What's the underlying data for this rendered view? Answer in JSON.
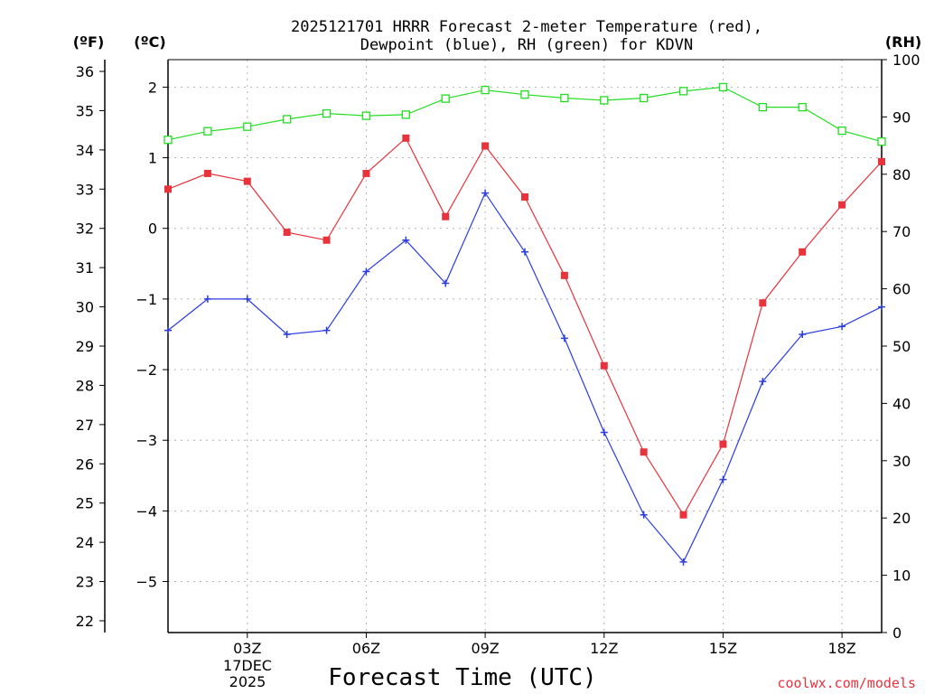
{
  "chart_data": {
    "type": "line",
    "title_line1": "2025121701 HRRR Forecast 2-meter Temperature (red),",
    "title_line2": "Dewpoint (blue), RH (green) for KDVN",
    "unit_left_f": "(ºF)",
    "unit_left_c": "(ºC)",
    "unit_right": "(RH)",
    "xlabel": "Forecast Time (UTC)",
    "credit": "coolwx.com/models",
    "date_day": "17DEC",
    "date_year": "2025",
    "x_hours": [
      1,
      2,
      3,
      4,
      5,
      6,
      7,
      8,
      9,
      10,
      11,
      12,
      13,
      14,
      15,
      16,
      17,
      18,
      19
    ],
    "x_ticks": [
      {
        "hour": 3,
        "label": "03Z"
      },
      {
        "hour": 6,
        "label": "06Z"
      },
      {
        "hour": 9,
        "label": "09Z"
      },
      {
        "hour": 12,
        "label": "12Z"
      },
      {
        "hour": 15,
        "label": "15Z"
      },
      {
        "hour": 18,
        "label": "18Z"
      }
    ],
    "fahrenheit_ticks": [
      "36",
      "35",
      "34",
      "33",
      "32",
      "31",
      "30",
      "29",
      "28",
      "27",
      "26",
      "25",
      "24",
      "23",
      "22"
    ],
    "celsius_ticks": [
      "2",
      "1",
      "0",
      "−1",
      "−2",
      "−3",
      "−4",
      "−5"
    ],
    "rh_ticks": [
      "100",
      "90",
      "80",
      "70",
      "60",
      "50",
      "40",
      "30",
      "20",
      "10",
      "0"
    ],
    "ylim_f": [
      21.7,
      36.3
    ],
    "ylim_rh": [
      0,
      100
    ],
    "series": [
      {
        "name": "Temperature",
        "units": "F",
        "color": "#e8323c",
        "marker": "filled-square",
        "values": [
          33.0,
          33.4,
          33.2,
          31.9,
          31.7,
          33.4,
          34.3,
          32.3,
          34.1,
          32.8,
          30.8,
          28.5,
          26.3,
          24.7,
          26.5,
          30.1,
          31.4,
          32.6,
          33.7
        ]
      },
      {
        "name": "Dewpoint",
        "units": "F",
        "color": "#2c3ce0",
        "marker": "plus",
        "values": [
          29.4,
          30.2,
          30.2,
          29.3,
          29.4,
          30.9,
          31.7,
          30.6,
          32.9,
          31.4,
          29.2,
          26.8,
          24.7,
          23.5,
          25.6,
          28.1,
          29.3,
          29.5,
          30.0
        ]
      },
      {
        "name": "RH",
        "units": "%",
        "color": "#22dd22",
        "marker": "open-square",
        "values": [
          86.0,
          87.5,
          88.3,
          89.6,
          90.6,
          90.2,
          90.4,
          93.2,
          94.7,
          93.9,
          93.3,
          92.9,
          93.3,
          94.5,
          95.2,
          91.7,
          91.7,
          87.6,
          85.7
        ]
      }
    ]
  }
}
